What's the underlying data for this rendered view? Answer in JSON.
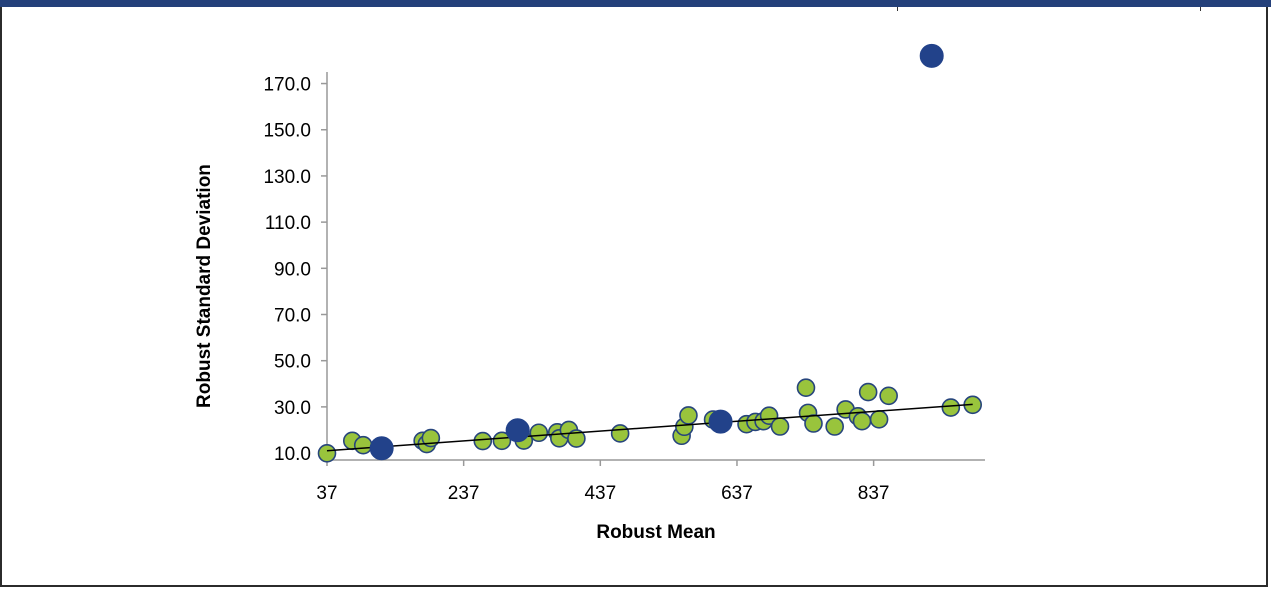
{
  "chart_data": {
    "type": "scatter",
    "title": "",
    "xlabel": "Robust Mean",
    "ylabel": "Robust Standard Deviation",
    "xlim": [
      37,
      1000
    ],
    "ylim": [
      7,
      175
    ],
    "x_ticks": [
      37,
      237,
      437,
      637,
      837
    ],
    "y_ticks": [
      10.0,
      30.0,
      50.0,
      70.0,
      90.0,
      110.0,
      130.0,
      150.0,
      170.0
    ],
    "x_tick_labels": [
      "37",
      "237",
      "437",
      "637",
      "837"
    ],
    "y_tick_labels": [
      "10.0",
      "30.0",
      "50.0",
      "70.0",
      "90.0",
      "110.0",
      "130.0",
      "150.0",
      "170.0"
    ],
    "grid": false,
    "legend": "none",
    "colors": {
      "series_green": "#99c43c",
      "series_blue": "#22428a",
      "marker_edge": "#27457c",
      "trendline": "#000000",
      "axis": "#999999",
      "header_bar": "#24407a"
    },
    "series": [
      {
        "points": [
          [
            37,
            9.9
          ],
          [
            74,
            15.3
          ],
          [
            90,
            13.4
          ],
          [
            177,
            15.3
          ],
          [
            183,
            13.9
          ],
          [
            189,
            16.5
          ],
          [
            265,
            15.2
          ],
          [
            293,
            15.3
          ],
          [
            320,
            20.2
          ],
          [
            325,
            15.4
          ],
          [
            347,
            18.8
          ],
          [
            374,
            19.0
          ],
          [
            377,
            16.4
          ],
          [
            391,
            20.0
          ],
          [
            402,
            16.3
          ],
          [
            466,
            18.5
          ],
          [
            556,
            17.5
          ],
          [
            560,
            21.4
          ],
          [
            566,
            26.3
          ],
          [
            602,
            24.5
          ],
          [
            651,
            22.5
          ],
          [
            664,
            23.5
          ],
          [
            676,
            23.8
          ],
          [
            684,
            26.2
          ],
          [
            700,
            21.5
          ],
          [
            738,
            38.3
          ],
          [
            741,
            27.4
          ],
          [
            749,
            22.8
          ],
          [
            780,
            21.5
          ],
          [
            796,
            28.9
          ],
          [
            814,
            25.9
          ],
          [
            820,
            23.8
          ],
          [
            829,
            36.4
          ],
          [
            845,
            24.6
          ],
          [
            859,
            34.8
          ],
          [
            950,
            29.7
          ],
          [
            982,
            30.9
          ]
        ]
      },
      {
        "points": [
          [
            117,
            12.1
          ],
          [
            316,
            19.9
          ],
          [
            613,
            23.6
          ],
          [
            922,
            182.0
          ]
        ]
      }
    ],
    "trendline": {
      "type": "linear",
      "x": [
        37,
        982
      ],
      "y": [
        11.0,
        31.1
      ]
    }
  }
}
